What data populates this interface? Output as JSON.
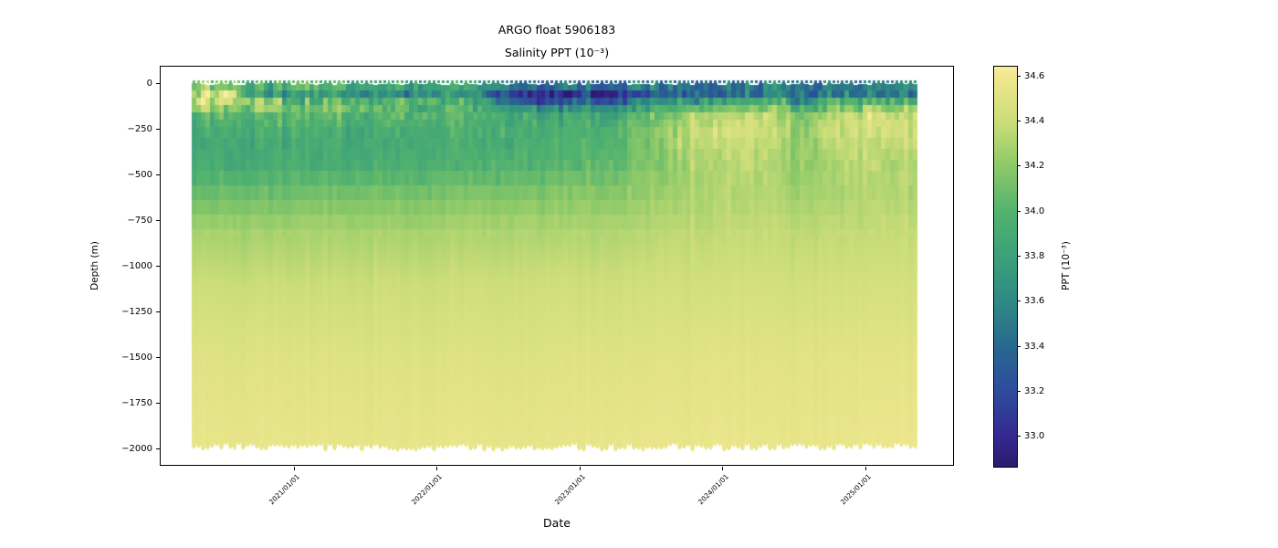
{
  "title": {
    "line1": "ARGO float 5906183",
    "line2": "Salinity PPT (10⁻³)"
  },
  "chart_data": {
    "type": "heatmap",
    "title": "ARGO float 5906183\nSalinity PPT (10⁻³)",
    "xlabel": "Date",
    "ylabel": "Depth (m)",
    "x_tick_labels": [
      "2021/01/01",
      "2022/01/01",
      "2023/01/01",
      "2024/01/01",
      "2025/01/01"
    ],
    "x_tick_frac_plot": [
      0.169,
      0.349,
      0.529,
      0.709,
      0.889
    ],
    "y_ticks": [
      0,
      -250,
      -500,
      -750,
      -1000,
      -1250,
      -1500,
      -1750,
      -2000
    ],
    "y_tick_labels": [
      "0",
      "−250",
      "−500",
      "−750",
      "−1000",
      "−1250",
      "−1500",
      "−1750",
      "−2000"
    ],
    "ylim": [
      95,
      -2095
    ],
    "x_data_range": [
      "2020-04",
      "2025-05"
    ],
    "extent_frac": [
      0.04,
      0.954
    ],
    "columns": 160,
    "bottom_depth_m": [
      1975,
      2012
    ],
    "colorbar": {
      "label": "PPT (10⁻³)",
      "tick_labels": [
        "34.6",
        "34.4",
        "34.2",
        "34.0",
        "33.8",
        "33.6",
        "33.4",
        "33.2",
        "33.0"
      ],
      "tick_values": [
        34.6,
        34.4,
        34.2,
        34.0,
        33.8,
        33.6,
        33.4,
        33.2,
        33.0
      ],
      "vmin": 32.87,
      "vmax": 34.645,
      "colormap": [
        {
          "v": 32.87,
          "c": "#2b1a6e"
        },
        {
          "v": 33.0,
          "c": "#35288f"
        },
        {
          "v": 33.2,
          "c": "#2e4b9e"
        },
        {
          "v": 33.4,
          "c": "#28678f"
        },
        {
          "v": 33.6,
          "c": "#2f8a84"
        },
        {
          "v": 33.8,
          "c": "#3ca07a"
        },
        {
          "v": 34.0,
          "c": "#52b26f"
        },
        {
          "v": 34.2,
          "c": "#8cc968"
        },
        {
          "v": 34.4,
          "c": "#cbdd78"
        },
        {
          "v": 34.6,
          "c": "#f0e78e"
        },
        {
          "v": 34.645,
          "c": "#f9ee9e"
        }
      ]
    },
    "grid": {
      "depths": [
        0,
        20,
        40,
        70,
        100,
        140,
        180,
        250,
        350,
        450,
        600,
        800,
        1100,
        1500,
        2000
      ],
      "keyframes": [
        {
          "t": 0.0,
          "s": [
            34.05,
            34.12,
            34.22,
            34.38,
            34.42,
            34.25,
            34.05,
            33.92,
            33.88,
            33.92,
            34.08,
            34.27,
            34.4,
            34.5,
            34.56
          ]
        },
        {
          "t": 0.049,
          "s": [
            34.1,
            34.18,
            34.32,
            34.45,
            34.38,
            34.18,
            34.0,
            33.91,
            33.88,
            33.92,
            34.08,
            34.27,
            34.4,
            34.5,
            34.56
          ]
        },
        {
          "t": 0.098,
          "s": [
            34.0,
            33.85,
            33.62,
            33.7,
            34.1,
            34.15,
            34.0,
            33.92,
            33.88,
            33.93,
            34.09,
            34.27,
            34.4,
            34.5,
            34.56
          ]
        },
        {
          "t": 0.148,
          "s": [
            34.05,
            33.95,
            33.7,
            33.65,
            33.92,
            34.05,
            34.0,
            33.93,
            33.89,
            33.94,
            34.1,
            34.28,
            34.4,
            34.5,
            34.56
          ]
        },
        {
          "t": 0.197,
          "s": [
            34.08,
            34.0,
            33.82,
            33.78,
            33.98,
            34.08,
            34.02,
            33.94,
            33.9,
            33.95,
            34.11,
            34.28,
            34.4,
            34.5,
            34.56
          ]
        },
        {
          "t": 0.262,
          "s": [
            34.02,
            33.88,
            33.62,
            33.72,
            34.0,
            34.05,
            34.0,
            33.93,
            33.91,
            33.96,
            34.12,
            34.29,
            34.41,
            34.5,
            34.56
          ]
        },
        {
          "t": 0.328,
          "s": [
            34.0,
            33.85,
            33.66,
            33.76,
            33.96,
            34.0,
            33.98,
            33.93,
            33.92,
            33.97,
            34.13,
            34.29,
            34.41,
            34.5,
            34.56
          ]
        },
        {
          "t": 0.393,
          "s": [
            33.98,
            33.78,
            33.55,
            33.62,
            33.86,
            33.95,
            33.96,
            33.93,
            33.93,
            33.98,
            34.14,
            34.3,
            34.41,
            34.5,
            34.56
          ]
        },
        {
          "t": 0.443,
          "s": [
            33.9,
            33.45,
            33.08,
            33.05,
            33.32,
            33.7,
            33.9,
            33.92,
            33.95,
            34.0,
            34.15,
            34.3,
            34.42,
            34.5,
            34.56
          ]
        },
        {
          "t": 0.492,
          "s": [
            33.85,
            33.38,
            33.0,
            32.95,
            33.22,
            33.6,
            33.86,
            33.93,
            33.97,
            34.02,
            34.16,
            34.31,
            34.42,
            34.5,
            34.56
          ]
        },
        {
          "t": 0.541,
          "s": [
            33.8,
            33.42,
            33.05,
            33.0,
            33.3,
            33.65,
            33.88,
            33.96,
            34.0,
            34.05,
            34.18,
            34.31,
            34.42,
            34.51,
            34.56
          ]
        },
        {
          "t": 0.59,
          "s": [
            33.85,
            33.5,
            33.15,
            33.1,
            33.42,
            33.72,
            33.92,
            34.02,
            34.06,
            34.1,
            34.2,
            34.32,
            34.43,
            34.51,
            34.57
          ]
        },
        {
          "t": 0.639,
          "s": [
            33.8,
            33.55,
            33.32,
            33.36,
            33.62,
            33.88,
            34.06,
            34.16,
            34.16,
            34.18,
            34.24,
            34.34,
            34.43,
            34.51,
            34.57
          ]
        },
        {
          "t": 0.689,
          "s": [
            33.75,
            33.5,
            33.32,
            33.46,
            33.76,
            34.1,
            34.3,
            34.4,
            34.35,
            34.3,
            34.3,
            34.36,
            34.44,
            34.52,
            34.57
          ]
        },
        {
          "t": 0.738,
          "s": [
            33.7,
            33.46,
            33.36,
            33.52,
            33.82,
            34.16,
            34.36,
            34.44,
            34.4,
            34.34,
            34.32,
            34.37,
            34.44,
            34.52,
            34.57
          ]
        },
        {
          "t": 0.787,
          "s": [
            33.72,
            33.5,
            33.4,
            33.56,
            33.86,
            34.2,
            34.4,
            34.45,
            34.4,
            34.35,
            34.33,
            34.38,
            34.45,
            34.52,
            34.57
          ]
        },
        {
          "t": 0.836,
          "s": [
            33.7,
            33.5,
            33.45,
            33.6,
            33.8,
            34.0,
            34.15,
            34.22,
            34.22,
            34.23,
            34.28,
            34.36,
            34.44,
            34.52,
            34.57
          ]
        },
        {
          "t": 0.885,
          "s": [
            33.68,
            33.48,
            33.42,
            33.56,
            33.86,
            34.16,
            34.36,
            34.4,
            34.35,
            34.3,
            34.3,
            34.37,
            34.45,
            34.52,
            34.57
          ]
        },
        {
          "t": 0.934,
          "s": [
            33.7,
            33.52,
            33.46,
            33.62,
            33.92,
            34.22,
            34.4,
            34.44,
            34.38,
            34.33,
            34.32,
            34.38,
            34.45,
            34.53,
            34.58
          ]
        },
        {
          "t": 1.0,
          "s": [
            33.75,
            33.56,
            33.5,
            33.66,
            33.96,
            34.25,
            34.4,
            34.42,
            34.36,
            34.32,
            34.32,
            34.38,
            34.45,
            34.53,
            34.58
          ]
        }
      ]
    },
    "noise": {
      "seed": 7,
      "level_amp": [
        0.1,
        0.16,
        0.22,
        0.22,
        0.18,
        0.14,
        0.11,
        0.085,
        0.065,
        0.055,
        0.032,
        0.018,
        0.012,
        0.008,
        0.008
      ],
      "col_bias": 0.8,
      "bin_noise": 0.7
    }
  }
}
